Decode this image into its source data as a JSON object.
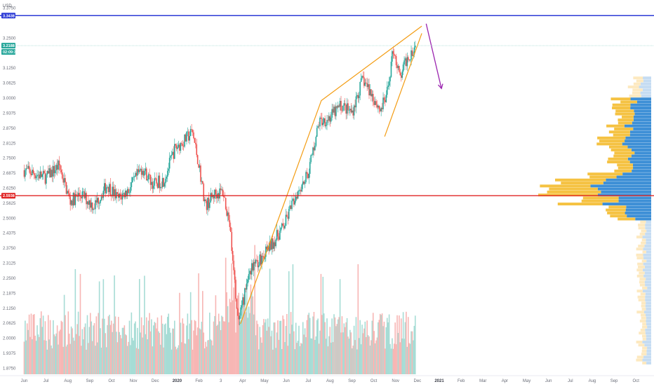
{
  "chart_data": {
    "type": "candlestick",
    "currency_label": "USD",
    "y_ticks": [
      "3.3750",
      "3.2500",
      "3.1250",
      "3.0625",
      "3.0000",
      "2.9375",
      "2.8750",
      "2.8125",
      "2.7500",
      "2.6875",
      "2.6250",
      "2.5625",
      "2.5000",
      "2.4375",
      "2.3750",
      "2.3125",
      "2.2500",
      "2.1875",
      "2.1250",
      "2.0625",
      "2.0000",
      "1.9375",
      "1.8750"
    ],
    "x_ticks": [
      "Jun",
      "Jul",
      "Aug",
      "Sep",
      "Oct",
      "Nov",
      "Dec",
      "2020",
      "Feb",
      "3",
      "Apr",
      "May",
      "Jun",
      "Jul",
      "Aug",
      "Sep",
      "Oct",
      "Nov",
      "Dec",
      "2021",
      "Feb",
      "Mar",
      "Apr",
      "May",
      "Jun",
      "Jul",
      "Aug",
      "Sep",
      "Oct"
    ],
    "x_tick_months": [
      0,
      1,
      2,
      3,
      4,
      5,
      6,
      7,
      8,
      9,
      10,
      11,
      12,
      13,
      14,
      15,
      16,
      17,
      18,
      19,
      20,
      21,
      22,
      23,
      24,
      25,
      26,
      27,
      28
    ],
    "x_range_months": [
      -0.4,
      28.7
    ],
    "y_range": [
      1.85,
      3.4
    ],
    "start_month": "2019-06",
    "price_path": [
      [
        0,
        2.7
      ],
      [
        1.0,
        2.67
      ],
      [
        1.6,
        2.72
      ],
      [
        2.1,
        2.57
      ],
      [
        2.6,
        2.6
      ],
      [
        3.2,
        2.55
      ],
      [
        3.8,
        2.64
      ],
      [
        4.3,
        2.58
      ],
      [
        4.8,
        2.62
      ],
      [
        5.4,
        2.71
      ],
      [
        5.9,
        2.64
      ],
      [
        6.4,
        2.66
      ],
      [
        6.9,
        2.79
      ],
      [
        7.3,
        2.82
      ],
      [
        7.7,
        2.86
      ],
      [
        8.0,
        2.72
      ],
      [
        8.3,
        2.55
      ],
      [
        8.7,
        2.6
      ],
      [
        9.1,
        2.61
      ],
      [
        9.4,
        2.48
      ],
      [
        9.8,
        2.05
      ],
      [
        10.3,
        2.28
      ],
      [
        10.8,
        2.33
      ],
      [
        11.4,
        2.4
      ],
      [
        11.9,
        2.47
      ],
      [
        12.5,
        2.61
      ],
      [
        13.0,
        2.69
      ],
      [
        13.5,
        2.9
      ],
      [
        14.0,
        2.92
      ],
      [
        14.5,
        2.97
      ],
      [
        15.0,
        2.94
      ],
      [
        15.5,
        3.08
      ],
      [
        16.0,
        3.0
      ],
      [
        16.3,
        2.95
      ],
      [
        16.6,
        3.01
      ],
      [
        16.9,
        3.21
      ],
      [
        17.2,
        3.08
      ],
      [
        17.5,
        3.16
      ],
      [
        17.9,
        3.22
      ]
    ],
    "price_lines": [
      {
        "value": 3.3438,
        "label": "3.3438",
        "color": "#2c3bd6"
      },
      {
        "value": 2.5938,
        "label": "2.5938",
        "color": "#e02424"
      }
    ],
    "last_price": {
      "value": 3.2188,
      "label": "3.2188",
      "countdown": "02:09:36",
      "color": "#26a69a"
    },
    "wedge": {
      "color": "#f39c12",
      "upper": [
        [
          9.9,
          2.06
        ],
        [
          13.6,
          2.99
        ],
        [
          18.2,
          3.3
        ]
      ],
      "lower": [
        [
          16.5,
          2.84
        ],
        [
          18.2,
          3.27
        ]
      ]
    },
    "arrow": {
      "color": "#9c27b0",
      "from": [
        18.4,
        3.31
      ],
      "to": [
        19.1,
        3.04
      ]
    },
    "volume_profile": {
      "colors": {
        "up": "#f5c242",
        "down": "#3d8fd6",
        "up_faint": "#fde9c0",
        "down_faint": "#c5dcf2"
      },
      "value_area": [
        2.49,
        3.0
      ]
    },
    "grid": false,
    "legend": false
  }
}
